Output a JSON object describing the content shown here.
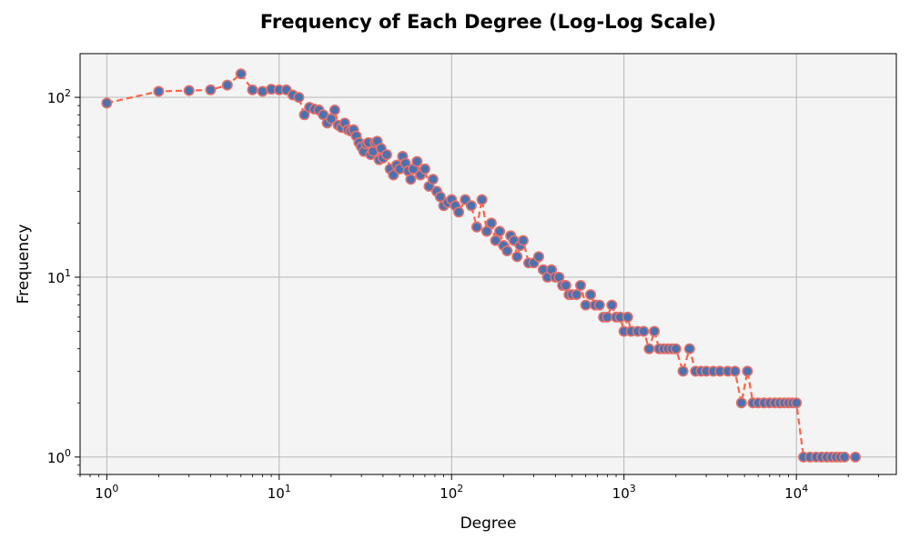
{
  "chart_data": {
    "type": "line",
    "title": "Frequency of Each Degree (Log-Log Scale)",
    "xlabel": "Degree",
    "ylabel": "Frequency",
    "xscale": "log",
    "yscale": "log",
    "xlim": [
      0.7,
      38000
    ],
    "ylim": [
      0.8,
      175
    ],
    "grid": true,
    "x_ticks": [
      {
        "value": 1,
        "base": "10",
        "exp": "0"
      },
      {
        "value": 10,
        "base": "10",
        "exp": "1"
      },
      {
        "value": 100,
        "base": "10",
        "exp": "2"
      },
      {
        "value": 1000,
        "base": "10",
        "exp": "3"
      },
      {
        "value": 10000,
        "base": "10",
        "exp": "4"
      }
    ],
    "y_ticks": [
      {
        "value": 1,
        "base": "10",
        "exp": "0"
      },
      {
        "value": 10,
        "base": "10",
        "exp": "1"
      },
      {
        "value": 100,
        "base": "10",
        "exp": "2"
      }
    ],
    "colors": {
      "plot_background": "#f4f4f4",
      "line": "#ff6347",
      "marker_face": "#4a72b0",
      "marker_edge": "#e8706a"
    },
    "series": [
      {
        "x": [
          1,
          2,
          3,
          4,
          5,
          6,
          7,
          8,
          9,
          10,
          11,
          12,
          13,
          14,
          15,
          16,
          17,
          18,
          19,
          20,
          21,
          22,
          23,
          24,
          25,
          26,
          27,
          28,
          29,
          30,
          31,
          32,
          33,
          34,
          35,
          36,
          37,
          38,
          39,
          40,
          42,
          44,
          46,
          48,
          50,
          52,
          54,
          56,
          58,
          60,
          63,
          66,
          70,
          74,
          78,
          82,
          86,
          90,
          95,
          100,
          105,
          110,
          120,
          130,
          140,
          150,
          160,
          170,
          180,
          190,
          200,
          210,
          220,
          230,
          240,
          250,
          260,
          280,
          300,
          320,
          340,
          360,
          380,
          400,
          420,
          440,
          460,
          480,
          500,
          530,
          560,
          600,
          640,
          680,
          720,
          760,
          800,
          850,
          900,
          950,
          1000,
          1050,
          1100,
          1200,
          1300,
          1400,
          1500,
          1600,
          1700,
          1800,
          1900,
          2000,
          2200,
          2400,
          2600,
          2800,
          3000,
          3300,
          3600,
          4000,
          4400,
          4800,
          5200,
          5600,
          6000,
          6500,
          7000,
          7500,
          8000,
          8500,
          9000,
          9500,
          10000,
          11000,
          12000,
          13000,
          14000,
          15000,
          16000,
          17000,
          18000,
          19000,
          22000
        ],
        "y": [
          93,
          108,
          109,
          110,
          117,
          135,
          110,
          108,
          111,
          110,
          110,
          103,
          100,
          80,
          88,
          86,
          85,
          80,
          72,
          76,
          85,
          70,
          68,
          72,
          66,
          65,
          66,
          61,
          56,
          53,
          50,
          55,
          56,
          48,
          50,
          56,
          57,
          45,
          52,
          46,
          48,
          40,
          37,
          42,
          40,
          47,
          43,
          39,
          35,
          40,
          44,
          37,
          40,
          32,
          35,
          30,
          28,
          25,
          26,
          27,
          25,
          23,
          27,
          25,
          19,
          27,
          18,
          20,
          16,
          18,
          15,
          14,
          17,
          16,
          13,
          15,
          16,
          12,
          12,
          13,
          11,
          10,
          11,
          10,
          10,
          9,
          9,
          8,
          8,
          8,
          9,
          7,
          8,
          7,
          7,
          6,
          6,
          7,
          6,
          6,
          5,
          6,
          5,
          5,
          5,
          4,
          5,
          4,
          4,
          4,
          4,
          4,
          3,
          4,
          3,
          3,
          3,
          3,
          3,
          3,
          3,
          2,
          3,
          2,
          2,
          2,
          2,
          2,
          2,
          2,
          2,
          2,
          2,
          1,
          1,
          1,
          1,
          1,
          1,
          1,
          1,
          1,
          1
        ]
      }
    ]
  }
}
